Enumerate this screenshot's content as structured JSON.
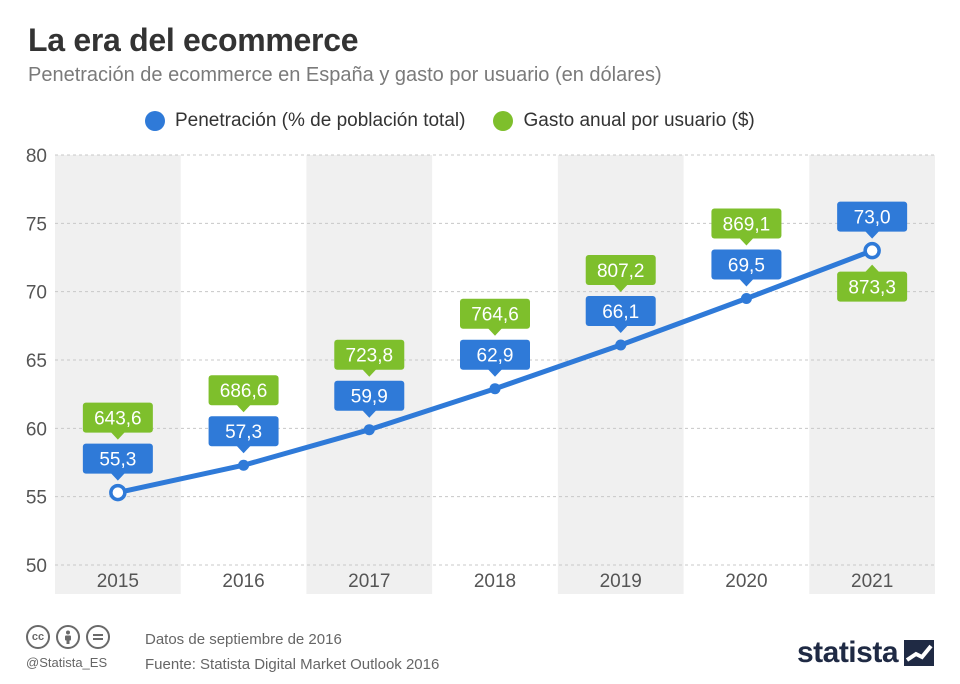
{
  "header": {
    "title": "La era del ecommerce",
    "subtitle": "Penetración de ecommerce en España y gasto por usuario (en dólares)"
  },
  "legend": {
    "penetration_label": "Penetración (% de población total)",
    "spend_label": "Gasto anual por usuario ($)"
  },
  "colors": {
    "penetration": "#2f7ad8",
    "spend": "#7ebf2c",
    "band": "#f0f0f0",
    "grid": "#c8c8c8",
    "axis_text": "#555555"
  },
  "chart_data": {
    "type": "line",
    "categories": [
      "2015",
      "2016",
      "2017",
      "2018",
      "2019",
      "2020",
      "2021"
    ],
    "series": [
      {
        "name": "Penetración (% de población total)",
        "values": [
          55.3,
          57.3,
          59.9,
          62.9,
          66.1,
          69.5,
          73.0
        ],
        "labels": [
          "55,3",
          "57,3",
          "59,9",
          "62,9",
          "66,1",
          "69,5",
          "73,0"
        ]
      },
      {
        "name": "Gasto anual por usuario ($)",
        "values": [
          643.6,
          686.6,
          723.8,
          764.6,
          807.2,
          869.1,
          873.3
        ],
        "labels": [
          "643,6",
          "686,6",
          "723,8",
          "764,6",
          "807,2",
          "869,1",
          "873,3"
        ]
      }
    ],
    "ylim": [
      50,
      80
    ],
    "yticks": [
      50,
      55,
      60,
      65,
      70,
      75,
      80
    ],
    "grid": true,
    "legend_position": "top"
  },
  "footer": {
    "handle": "@Statista_ES",
    "note_date": "Datos de septiembre de 2016",
    "note_source": "Fuente: Statista Digital Market Outlook 2016",
    "brand": "statista",
    "icons": [
      "cc-icon",
      "by-icon",
      "nd-icon"
    ]
  }
}
